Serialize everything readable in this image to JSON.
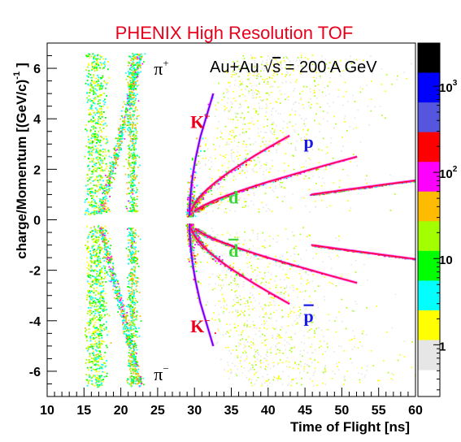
{
  "chart_data": {
    "type": "heatmap",
    "title": "PHENIX High Resolution TOF",
    "xlabel": "Time of Flight [ns]",
    "ylabel": "charge/Momentum [(GeV/c)",
    "ylabel_exponent": "-1",
    "ylabel_close": "]",
    "xlim": [
      10,
      60
    ],
    "ylim": [
      -7,
      7
    ],
    "xticks": [
      "10",
      "15",
      "20",
      "25",
      "30",
      "35",
      "40",
      "45",
      "50",
      "55",
      "60"
    ],
    "yticks": [
      "6",
      "4",
      "2",
      "0",
      "-2",
      "-4",
      "-6"
    ],
    "annotation": {
      "prefix": "Au+Au ",
      "root": "√",
      "s": "s",
      "suffix": " = 200 A GeV"
    },
    "particle_labels": [
      {
        "text": "π",
        "sup": "+",
        "tof": 25.5,
        "qp": 6.0,
        "color": "#000000"
      },
      {
        "text": "π",
        "sup": "−",
        "tof": 25.5,
        "qp": -6.1,
        "color": "#000000"
      },
      {
        "text": "K",
        "sup": "+",
        "tof": 30.8,
        "qp": 3.9,
        "color": "#e8001c"
      },
      {
        "text": "K",
        "sup": "−",
        "tof": 30.8,
        "qp": -4.2,
        "color": "#e8001c"
      },
      {
        "text": "p",
        "sup": "",
        "tof": 45.5,
        "qp": 3.1,
        "color": "#1a1ae8"
      },
      {
        "text": "p",
        "sup": "",
        "bar": true,
        "tof": 45.5,
        "qp": -3.8,
        "color": "#1a1ae8"
      },
      {
        "text": "d",
        "sup": "",
        "tof": 35.3,
        "qp": 0.9,
        "color": "#3ad63a"
      },
      {
        "text": "d",
        "sup": "",
        "bar": true,
        "tof": 35.3,
        "qp": -1.2,
        "color": "#3ad63a"
      }
    ],
    "bands": [
      {
        "name": "pi+",
        "mass": 0.1396,
        "sign": 1,
        "pmin": 0.2,
        "pmax": 6.5
      },
      {
        "name": "pi-",
        "mass": 0.1396,
        "sign": -1,
        "pmin": 0.2,
        "pmax": 6.5
      },
      {
        "name": "K+",
        "mass": 0.4937,
        "sign": 1,
        "pmin": 0.3,
        "pmax": 3.0
      },
      {
        "name": "K-",
        "mass": 0.4937,
        "sign": -1,
        "pmin": 0.3,
        "pmax": 3.0
      },
      {
        "name": "p",
        "mass": 0.9383,
        "sign": 1,
        "pmin": 0.4,
        "pmax": 2.9
      },
      {
        "name": "pbar",
        "mass": 0.9383,
        "sign": -1,
        "pmin": 0.4,
        "pmax": 2.9
      },
      {
        "name": "d",
        "mass": 1.8756,
        "sign": 1,
        "pmin": 0.5,
        "pmax": 1.0
      },
      {
        "name": "dbar",
        "mass": 1.8756,
        "sign": -1,
        "pmin": 0.5,
        "pmax": 1.0
      }
    ],
    "colorbar": {
      "colors": [
        "#e6e6e6",
        "#ffff00",
        "#00ffff",
        "#00ff00",
        "#a3ff00",
        "#ffbb00",
        "#ff00ff",
        "#ff0000",
        "#5555dd",
        "#0000ff",
        "#000000"
      ],
      "labels": [
        "1",
        "10",
        "10",
        "10"
      ],
      "label_exponents": [
        "",
        "",
        "2",
        "3"
      ]
    }
  }
}
